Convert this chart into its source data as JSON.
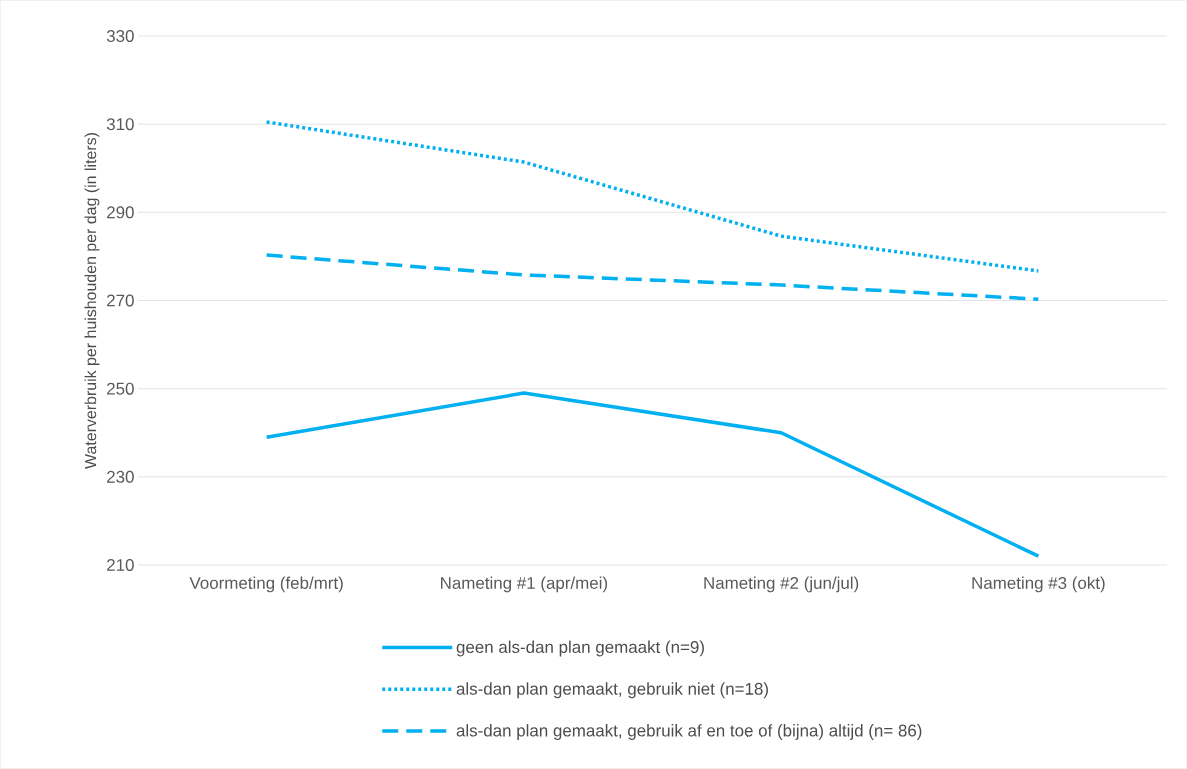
{
  "chart_data": {
    "type": "line",
    "ylabel": "Waterverbruik per huishouden per dag (in liters)",
    "categories": [
      "Voormeting (feb/mrt)",
      "Nameting #1 (apr/mei)",
      "Nameting #2 (jun/jul)",
      "Nameting #3 (okt)"
    ],
    "series": [
      {
        "name": "geen als-dan plan gemaakt (n=9)",
        "color": "#00b0f0",
        "line_style": "solid",
        "values": [
          239,
          249,
          240,
          212
        ]
      },
      {
        "name": "als-dan plan gemaakt, gebruik niet (n=18)",
        "color": "#00b0f0",
        "line_style": "dotted",
        "values": [
          310.5,
          301.4,
          284.6,
          276.7
        ]
      },
      {
        "name": "als-dan plan gemaakt, gebruik af en toe of (bijna) altijd (n= 86)",
        "color": "#00b0f0",
        "line_style": "dashed",
        "values": [
          280.3,
          275.8,
          273.5,
          270.3
        ]
      }
    ],
    "ylim": [
      210,
      330
    ],
    "yticks": [
      210,
      230,
      250,
      270,
      290,
      310,
      330
    ],
    "grid": "y",
    "legend": "bottom",
    "marker": "none"
  }
}
